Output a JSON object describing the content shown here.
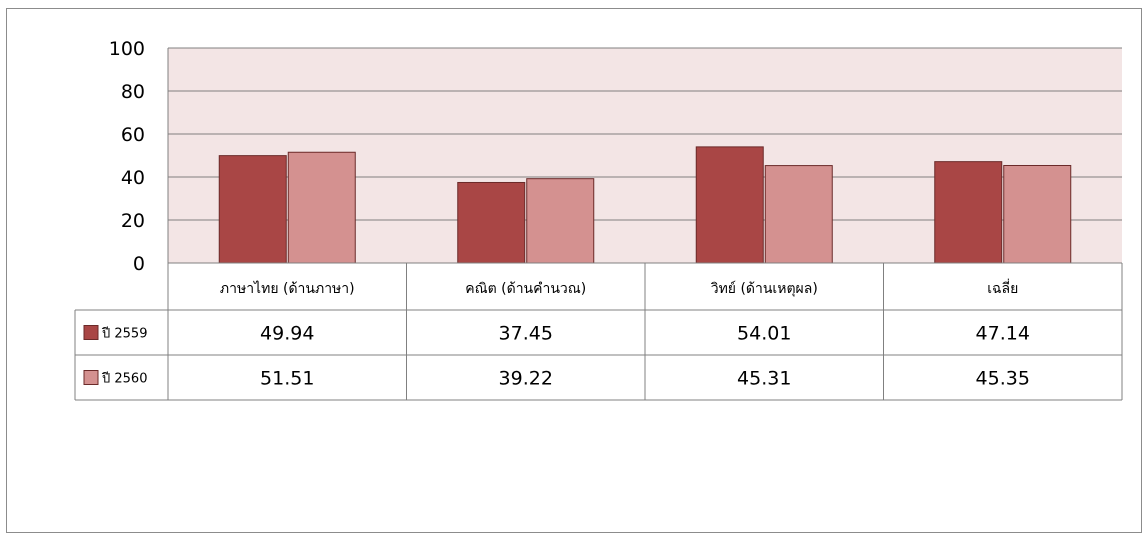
{
  "chart_data": {
    "type": "bar",
    "categories": [
      "ภาษาไทย (ด้านภาษา)",
      "คณิต (ด้านคำนวณ)",
      "วิทย์ (ด้านเหตุผล)",
      "เฉลี่ย"
    ],
    "series": [
      {
        "name": "ปี 2559",
        "values": [
          49.94,
          37.45,
          54.01,
          47.14
        ],
        "color": "#a94645"
      },
      {
        "name": "ปี 2560",
        "values": [
          51.51,
          39.22,
          45.31,
          45.35
        ],
        "color": "#d49190"
      }
    ],
    "value_labels": [
      [
        "49.94",
        "37.45",
        "54.01",
        "47.14"
      ],
      [
        "51.51",
        "39.22",
        "45.31",
        "45.35"
      ]
    ],
    "y_ticks": [
      "0",
      "20",
      "40",
      "60",
      "80",
      "100"
    ],
    "ylim": [
      0,
      100
    ],
    "grid": true,
    "plot_background": "#f3e5e5",
    "legend": "data-table-left",
    "title": "",
    "xlabel": "",
    "ylabel": ""
  }
}
